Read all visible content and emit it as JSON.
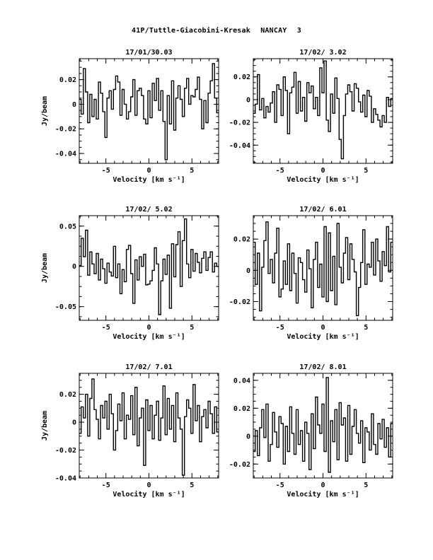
{
  "page": {
    "title": "41P/Tuttle-Giacobini-Kresak   NANCAY      3"
  },
  "chart_data": [
    {
      "type": "line",
      "title": "17/01/30.03",
      "xlabel": "Velocity [km s⁻¹]",
      "ylabel": "Jy/beam",
      "xlim": [
        -8.1,
        8.1
      ],
      "ylim": [
        -0.048,
        0.037
      ],
      "xticks": [
        -5,
        0,
        5
      ],
      "yticks": [
        -0.04,
        -0.02,
        0,
        0.02
      ],
      "ytick_labels": [
        "-0.04",
        "-0.02",
        "0",
        "0.02"
      ],
      "x": [
        -8,
        -7.75,
        -7.5,
        -7.25,
        -7,
        -6.75,
        -6.5,
        -6.25,
        -6,
        -5.75,
        -5.5,
        -5.25,
        -5,
        -4.75,
        -4.5,
        -4.25,
        -4,
        -3.75,
        -3.5,
        -3.25,
        -3,
        -2.75,
        -2.5,
        -2.25,
        -2,
        -1.75,
        -1.5,
        -1.25,
        -1,
        -0.75,
        -0.5,
        -0.25,
        0,
        0.25,
        0.5,
        0.75,
        1,
        1.25,
        1.5,
        1.75,
        2,
        2.25,
        2.5,
        2.75,
        3,
        3.25,
        3.5,
        3.75,
        4,
        4.25,
        4.5,
        4.75,
        5,
        5.25,
        5.5,
        5.75,
        6,
        6.25,
        6.5,
        6.75,
        7,
        7.25,
        7.5,
        7.75,
        8
      ],
      "y": [
        0.004,
        -0.008,
        0.029,
        0.01,
        -0.015,
        0.008,
        -0.01,
        0.004,
        -0.012,
        0.018,
        0.009,
        -0.006,
        -0.027,
        0.005,
        0.011,
        -0.004,
        0.012,
        0.023,
        0.018,
        -0.009,
        0.012,
        0.0,
        -0.012,
        -0.006,
        0.006,
        0.02,
        -0.009,
        0.011,
        0.013,
        0.007,
        -0.012,
        -0.016,
        0.011,
        -0.011,
        0.017,
        0.003,
        0.021,
        -0.005,
        0.011,
        -0.014,
        -0.045,
        0.007,
        -0.016,
        0.019,
        -0.021,
        0.005,
        0.015,
        0.004,
        -0.01,
        0.013,
        0.021,
        0.0,
        0.007,
        0.006,
        0.012,
        0.022,
        0.004,
        -0.02,
        0.003,
        -0.015,
        0.009,
        0.019,
        0.033,
        0.005,
        -0.007
      ]
    },
    {
      "type": "line",
      "title": "17/02/ 3.02",
      "xlabel": "Velocity [km s⁻¹]",
      "ylabel": "",
      "xlim": [
        -8.1,
        8.1
      ],
      "ylim": [
        -0.056,
        0.036
      ],
      "xticks": [
        -5,
        0,
        5
      ],
      "yticks": [
        -0.04,
        -0.02,
        0,
        0.02
      ],
      "ytick_labels": [
        "-0.04",
        "-0.02",
        "0",
        "0.02"
      ],
      "x": [
        -8,
        -7.75,
        -7.5,
        -7.25,
        -7,
        -6.75,
        -6.5,
        -6.25,
        -6,
        -5.75,
        -5.5,
        -5.25,
        -5,
        -4.75,
        -4.5,
        -4.25,
        -4,
        -3.75,
        -3.5,
        -3.25,
        -3,
        -2.75,
        -2.5,
        -2.25,
        -2,
        -1.75,
        -1.5,
        -1.25,
        -1,
        -0.75,
        -0.5,
        -0.25,
        0,
        0.25,
        0.5,
        0.75,
        1,
        1.25,
        1.5,
        1.75,
        2,
        2.25,
        2.5,
        2.75,
        3,
        3.25,
        3.5,
        3.75,
        4,
        4.25,
        4.5,
        4.75,
        5,
        5.25,
        5.5,
        5.75,
        6,
        6.25,
        6.5,
        6.75,
        7,
        7.25,
        7.5,
        7.75,
        8
      ],
      "y": [
        -0.012,
        -0.004,
        0.022,
        -0.009,
        0.001,
        -0.016,
        -0.006,
        -0.011,
        -0.003,
        0.007,
        -0.02,
        0.013,
        0.009,
        -0.014,
        0.02,
        0.008,
        -0.03,
        0.006,
        0.011,
        0.024,
        -0.012,
        0.016,
        -0.01,
        0.002,
        -0.019,
        0.015,
        0.006,
        0.012,
        -0.008,
        0.002,
        -0.014,
        0.028,
        0.006,
        0.034,
        -0.018,
        -0.028,
        0.005,
        -0.012,
        0.019,
        0.001,
        -0.035,
        -0.052,
        -0.014,
        0.005,
        0.013,
        0.007,
        -0.01,
        0.014,
        0.01,
        -0.002,
        -0.011,
        0.004,
        -0.015,
        0.008,
        0.003,
        -0.02,
        -0.008,
        -0.013,
        -0.018,
        -0.024,
        -0.014,
        -0.02,
        0.002,
        -0.006,
        0.001
      ]
    },
    {
      "type": "line",
      "title": "17/02/ 5.02",
      "xlabel": "Velocity [km s⁻¹]",
      "ylabel": "Jy/beam",
      "xlim": [
        -8.1,
        8.1
      ],
      "ylim": [
        -0.067,
        0.063
      ],
      "xticks": [
        -5,
        0,
        5
      ],
      "yticks": [
        -0.05,
        0,
        0.05
      ],
      "ytick_labels": [
        "-0.05",
        "0",
        "0.05"
      ],
      "x": [
        -8,
        -7.75,
        -7.5,
        -7.25,
        -7,
        -6.75,
        -6.5,
        -6.25,
        -6,
        -5.75,
        -5.5,
        -5.25,
        -5,
        -4.75,
        -4.5,
        -4.25,
        -4,
        -3.75,
        -3.5,
        -3.25,
        -3,
        -2.75,
        -2.5,
        -2.25,
        -2,
        -1.75,
        -1.5,
        -1.25,
        -1,
        -0.75,
        -0.5,
        -0.25,
        0,
        0.25,
        0.5,
        0.75,
        1,
        1.25,
        1.5,
        1.75,
        2,
        2.25,
        2.5,
        2.75,
        3,
        3.25,
        3.5,
        3.75,
        4,
        4.25,
        4.5,
        4.75,
        5,
        5.25,
        5.5,
        5.75,
        6,
        6.25,
        6.5,
        6.75,
        7,
        7.25,
        7.5,
        7.75,
        8
      ],
      "y": [
        0.001,
        0.035,
        0.012,
        0.045,
        -0.011,
        0.018,
        0.003,
        -0.009,
        0.016,
        -0.017,
        0.009,
        -0.003,
        -0.021,
        0.004,
        -0.007,
        -0.012,
        0.025,
        -0.014,
        0.003,
        -0.034,
        -0.004,
        -0.019,
        0.021,
        0.026,
        -0.009,
        -0.046,
        0.008,
        -0.017,
        0.012,
        0.0,
        0.015,
        -0.023,
        -0.022,
        -0.018,
        -0.005,
        0.023,
        0.003,
        -0.06,
        -0.018,
        0.009,
        -0.01,
        0.014,
        -0.052,
        0.028,
        -0.013,
        0.027,
        0.043,
        -0.025,
        0.032,
        0.059,
        0.003,
        -0.014,
        0.021,
        -0.006,
        0.016,
        0.005,
        -0.008,
        0.01,
        0.018,
        -0.005,
        0.011,
        0.018,
        -0.007,
        0.004,
        0.0
      ]
    },
    {
      "type": "line",
      "title": "17/02/ 6.01",
      "xlabel": "Velocity [km s⁻¹]",
      "ylabel": "",
      "xlim": [
        -8.1,
        8.1
      ],
      "ylim": [
        -0.032,
        0.035
      ],
      "xticks": [
        -5,
        0,
        5
      ],
      "yticks": [
        -0.02,
        0,
        0.02
      ],
      "ytick_labels": [
        "-0.02",
        "0",
        "0.02"
      ],
      "x": [
        -8,
        -7.75,
        -7.5,
        -7.25,
        -7,
        -6.75,
        -6.5,
        -6.25,
        -6,
        -5.75,
        -5.5,
        -5.25,
        -5,
        -4.75,
        -4.5,
        -4.25,
        -4,
        -3.75,
        -3.5,
        -3.25,
        -3,
        -2.75,
        -2.5,
        -2.25,
        -2,
        -1.75,
        -1.5,
        -1.25,
        -1,
        -0.75,
        -0.5,
        -0.25,
        0,
        0.25,
        0.5,
        0.75,
        1,
        1.25,
        1.5,
        1.75,
        2,
        2.25,
        2.5,
        2.75,
        3,
        3.25,
        3.5,
        3.75,
        4,
        4.25,
        4.5,
        4.75,
        5,
        5.25,
        5.5,
        5.75,
        6,
        6.25,
        6.5,
        6.75,
        7,
        7.25,
        7.5,
        7.75,
        8
      ],
      "y": [
        0.018,
        -0.009,
        0.011,
        -0.026,
        0.002,
        0.019,
        0.031,
        -0.002,
        0.007,
        -0.008,
        0.011,
        0.027,
        -0.017,
        -0.012,
        0.006,
        -0.009,
        0.017,
        -0.013,
        0.011,
        -0.002,
        -0.021,
        0.008,
        0.005,
        -0.006,
        -0.014,
        0.013,
        0.001,
        -0.024,
        0.007,
        0.018,
        -0.011,
        0.004,
        -0.017,
        0.028,
        -0.02,
        0.024,
        -0.013,
        0.009,
        -0.022,
        0.03,
        0.002,
        -0.008,
        0.011,
        0.021,
        -0.006,
        0.017,
        0.007,
        -0.001,
        -0.029,
        -0.011,
        0.005,
        0.026,
        -0.009,
        0.004,
        0.002,
        0.018,
        -0.003,
        0.02,
        0.006,
        -0.007,
        0.012,
        0.003,
        0.028,
        -0.001,
        0.018
      ]
    },
    {
      "type": "line",
      "title": "17/02/ 7.01",
      "xlabel": "Velocity [km s⁻¹]",
      "ylabel": "Jy/beam",
      "xlim": [
        -8.1,
        8.1
      ],
      "ylim": [
        -0.04,
        0.035
      ],
      "xticks": [
        -5,
        0,
        5
      ],
      "yticks": [
        -0.04,
        -0.02,
        0,
        0.02
      ],
      "ytick_labels": [
        "-0.04",
        "-0.02",
        "0",
        "0.02"
      ],
      "x": [
        -8,
        -7.75,
        -7.5,
        -7.25,
        -7,
        -6.75,
        -6.5,
        -6.25,
        -6,
        -5.75,
        -5.5,
        -5.25,
        -5,
        -4.75,
        -4.5,
        -4.25,
        -4,
        -3.75,
        -3.5,
        -3.25,
        -3,
        -2.75,
        -2.5,
        -2.25,
        -2,
        -1.75,
        -1.5,
        -1.25,
        -1,
        -0.75,
        -0.5,
        -0.25,
        0,
        0.25,
        0.5,
        0.75,
        1,
        1.25,
        1.5,
        1.75,
        2,
        2.25,
        2.5,
        2.75,
        3,
        3.25,
        3.5,
        3.75,
        4,
        4.25,
        4.5,
        4.75,
        5,
        5.25,
        5.5,
        5.75,
        6,
        6.25,
        6.5,
        6.75,
        7,
        7.25,
        7.5,
        7.75,
        8
      ],
      "y": [
        -0.008,
        0.011,
        0.003,
        0.02,
        -0.01,
        0.017,
        0.031,
        0.009,
        0.002,
        -0.012,
        0.012,
        0.003,
        0.015,
        -0.005,
        0.02,
        0.006,
        -0.02,
        -0.006,
        0.013,
        0.001,
        0.021,
        -0.012,
        0.005,
        0.002,
        0.019,
        -0.009,
        0.025,
        -0.017,
        0.003,
        0.01,
        -0.031,
        0.016,
        -0.006,
        0.012,
        -0.012,
        0.005,
        0.015,
        -0.013,
        0.003,
        0.026,
        -0.009,
        0.017,
        -0.005,
        0.012,
        -0.014,
        0.021,
        0.003,
        -0.005,
        -0.038,
        0.004,
        0.016,
        0.01,
        -0.008,
        0.027,
        0.001,
        0.012,
        -0.014,
        0.004,
        0.009,
        -0.004,
        0.015,
        0.006,
        -0.008,
        0.011,
        -0.007
      ]
    },
    {
      "type": "line",
      "title": "17/02/ 8.01",
      "xlabel": "Velocity [km s⁻¹]",
      "ylabel": "",
      "xlim": [
        -8.1,
        8.1
      ],
      "ylim": [
        -0.03,
        0.045
      ],
      "xticks": [
        -5,
        0,
        5
      ],
      "yticks": [
        -0.02,
        0,
        0.02,
        0.04
      ],
      "ytick_labels": [
        "-0.02",
        "0",
        "0.02",
        "0.04"
      ],
      "x": [
        -8,
        -7.75,
        -7.5,
        -7.25,
        -7,
        -6.75,
        -6.5,
        -6.25,
        -6,
        -5.75,
        -5.5,
        -5.25,
        -5,
        -4.75,
        -4.5,
        -4.25,
        -4,
        -3.75,
        -3.5,
        -3.25,
        -3,
        -2.75,
        -2.5,
        -2.25,
        -2,
        -1.75,
        -1.5,
        -1.25,
        -1,
        -0.75,
        -0.5,
        -0.25,
        0,
        0.25,
        0.5,
        0.75,
        1,
        1.25,
        1.5,
        1.75,
        2,
        2.25,
        2.5,
        2.75,
        3,
        3.25,
        3.5,
        3.75,
        4,
        4.25,
        4.5,
        4.75,
        5,
        5.25,
        5.5,
        5.75,
        6,
        6.25,
        6.5,
        6.75,
        7,
        7.25,
        7.5,
        7.75,
        8
      ],
      "y": [
        -0.011,
        0.004,
        -0.014,
        0.006,
        0.019,
        -0.001,
        0.023,
        -0.018,
        -0.006,
        0.017,
        0.003,
        -0.008,
        0.014,
        0.009,
        -0.02,
        0.007,
        -0.011,
        0.021,
        0.002,
        -0.013,
        0.019,
        -0.006,
        0.004,
        -0.018,
        0.01,
        0.002,
        -0.024,
        0.016,
        -0.009,
        0.028,
        0.008,
        0.002,
        0.023,
        -0.011,
        0.042,
        -0.026,
        0.011,
        -0.004,
        0.019,
        -0.017,
        0.024,
        0.008,
        0.013,
        -0.018,
        0.022,
        -0.013,
        0.007,
        0.019,
        0.002,
        -0.005,
        0.011,
        -0.019,
        0.006,
        0.003,
        -0.01,
        0.016,
        -0.006,
        -0.013,
        0.009,
        -0.002,
        0.012,
        -0.008,
        0.006,
        -0.015,
        0.009
      ]
    }
  ]
}
